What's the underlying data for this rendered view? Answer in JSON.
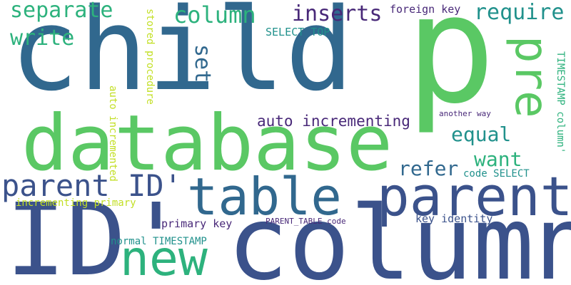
{
  "word_cloud": {
    "background": "#ffffff",
    "words": [
      {
        "text": "child",
        "color": "#31688e",
        "orientation": "horizontal"
      },
      {
        "text": "p",
        "color": "#5ac864",
        "orientation": "horizontal"
      },
      {
        "text": "database",
        "color": "#5ac864",
        "orientation": "horizontal"
      },
      {
        "text": "column",
        "color": "#3b528b",
        "orientation": "horizontal"
      },
      {
        "text": "ID'",
        "color": "#3b528b",
        "orientation": "horizontal"
      },
      {
        "text": "table",
        "color": "#31688e",
        "orientation": "horizontal"
      },
      {
        "text": "parent",
        "color": "#3b528b",
        "orientation": "horizontal"
      },
      {
        "text": "new",
        "color": "#2db27d",
        "orientation": "horizontal"
      },
      {
        "text": "pre",
        "color": "#5ac864",
        "orientation": "vertical"
      },
      {
        "text": "parent ID'",
        "color": "#3b528b",
        "orientation": "horizontal"
      },
      {
        "text": "separate",
        "color": "#2db27d",
        "orientation": "horizontal"
      },
      {
        "text": "column",
        "color": "#2db27d",
        "orientation": "horizontal"
      },
      {
        "text": "inserts",
        "color": "#482878",
        "orientation": "horizontal"
      },
      {
        "text": "require",
        "color": "#21918c",
        "orientation": "horizontal"
      },
      {
        "text": "write",
        "color": "#2db27d",
        "orientation": "horizontal"
      },
      {
        "text": "set",
        "color": "#31688e",
        "orientation": "vertical"
      },
      {
        "text": "equal",
        "color": "#21918c",
        "orientation": "horizontal"
      },
      {
        "text": "want",
        "color": "#2db27d",
        "orientation": "horizontal"
      },
      {
        "text": "refer",
        "color": "#31688e",
        "orientation": "horizontal"
      },
      {
        "text": "auto incrementing",
        "color": "#482878",
        "orientation": "horizontal"
      },
      {
        "text": "foreign key",
        "color": "#482878",
        "orientation": "horizontal"
      },
      {
        "text": "SELECT TOP",
        "color": "#21918c",
        "orientation": "horizontal"
      },
      {
        "text": "stored procedure",
        "color": "#c2df23",
        "orientation": "vertical"
      },
      {
        "text": "auto incremented",
        "color": "#c2df23",
        "orientation": "vertical"
      },
      {
        "text": "TIMESTAMP column'",
        "color": "#2db27d",
        "orientation": "vertical"
      },
      {
        "text": "another way",
        "color": "#482878",
        "orientation": "horizontal"
      },
      {
        "text": "code SELECT",
        "color": "#21918c",
        "orientation": "horizontal"
      },
      {
        "text": "incrementing primary",
        "color": "#c2df23",
        "orientation": "horizontal"
      },
      {
        "text": "primary key",
        "color": "#482878",
        "orientation": "horizontal"
      },
      {
        "text": "PARENT_TABLE code",
        "color": "#482878",
        "orientation": "horizontal"
      },
      {
        "text": "key identity",
        "color": "#3b528b",
        "orientation": "horizontal"
      },
      {
        "text": "normal TIMESTAMP",
        "color": "#21918c",
        "orientation": "horizontal"
      }
    ]
  }
}
